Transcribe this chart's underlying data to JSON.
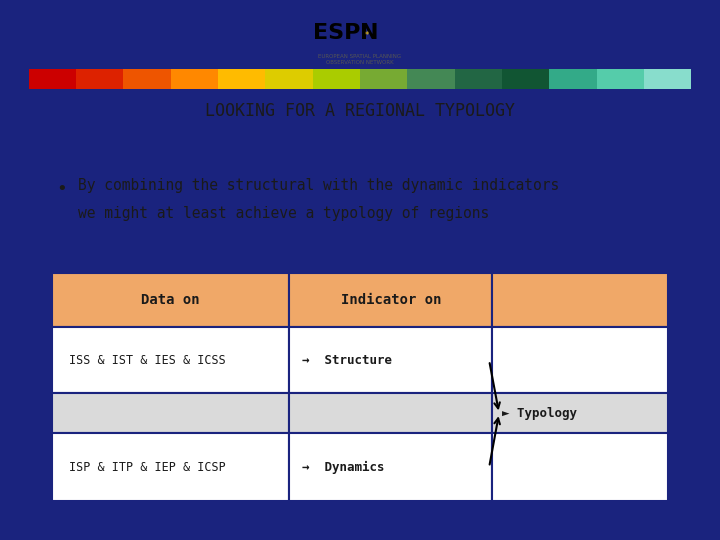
{
  "title": "LOOKING FOR A REGIONAL TYPOLOGY",
  "bullet_text_line1": "By combining the structural with the dynamic indicators",
  "bullet_text_line2": "we might at least achieve a typology of regions",
  "bg_main": "#c8c8c8",
  "bg_header": "#ffffff",
  "border_color": "#1a237e",
  "table_header_color": "#f0a868",
  "table_border_color": "#1a237e",
  "title_color": "#1a1a1a",
  "bullet_color": "#1a1a1a",
  "table_text_color": "#1a1a1a",
  "row1_label": "ISS & IST & IES & ICSS",
  "row2_label": "ISP & ITP & IEP & ICSP",
  "col1_header": "Data on",
  "col2_header": "Indicator on",
  "row1_indicator": "→  Structure",
  "row2_indicator": "→  Dynamics",
  "typology_text": "► Typology",
  "stripe_colors": [
    "#cc0000",
    "#dd2200",
    "#ee5500",
    "#ff8800",
    "#ffbb00",
    "#ddcc00",
    "#aacc00",
    "#77aa33",
    "#448855",
    "#226644",
    "#115533",
    "#33aa88",
    "#55ccaa",
    "#88ddcc"
  ],
  "fig_width": 7.2,
  "fig_height": 5.4,
  "dpi": 100
}
